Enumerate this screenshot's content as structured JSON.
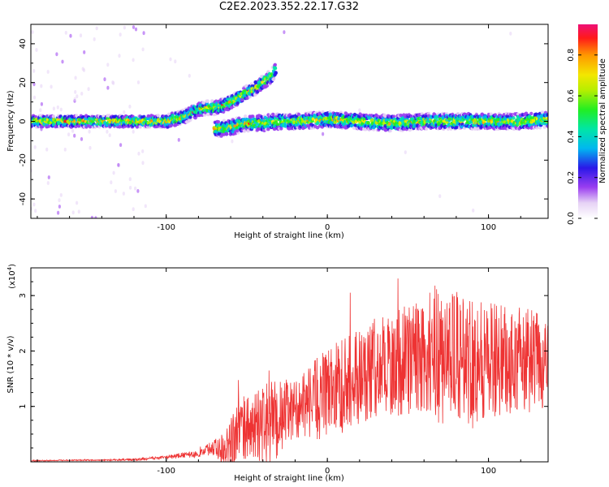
{
  "title": "C2E2.2023.352.22.17.G32",
  "chart_data": [
    {
      "type": "heatmap",
      "xlabel": "Height of straight line (km)",
      "ylabel": "Frequency (Hz)",
      "xlim": [
        -184,
        137
      ],
      "ylim": [
        -50,
        50
      ],
      "xticks": [
        "-100",
        "0",
        "100"
      ],
      "yticks": [
        "40",
        "20",
        "0",
        "-20",
        "-40"
      ],
      "colorbar": {
        "label": "Normalized spectral amplitude",
        "range": [
          0,
          0.95
        ],
        "ticks": [
          "0.0",
          "0.2",
          "0.4",
          "0.6",
          "0.8"
        ]
      },
      "ridge": [
        {
          "x": -184,
          "f": 0
        },
        {
          "x": -160,
          "f": 0
        },
        {
          "x": -140,
          "f": 0
        },
        {
          "x": -120,
          "f": 0
        },
        {
          "x": -100,
          "f": 0
        },
        {
          "x": -95,
          "f": 1
        },
        {
          "x": -90,
          "f": 2
        },
        {
          "x": -85,
          "f": 4
        },
        {
          "x": -80,
          "f": 6
        },
        {
          "x": -75,
          "f": 7
        },
        {
          "x": -70,
          "f": 7
        },
        {
          "x": -65,
          "f": 8
        },
        {
          "x": -60,
          "f": 10
        },
        {
          "x": -55,
          "f": 12
        },
        {
          "x": -50,
          "f": 15
        },
        {
          "x": -45,
          "f": 17
        },
        {
          "x": -40,
          "f": 20
        },
        {
          "x": -35,
          "f": 23
        },
        {
          "x": -32,
          "f": 27
        }
      ],
      "lower_branch": [
        {
          "x": -70,
          "f": -4
        },
        {
          "x": -60,
          "f": -3
        },
        {
          "x": -50,
          "f": -1
        },
        {
          "x": -40,
          "f": -1
        },
        {
          "x": -30,
          "f": 0
        },
        {
          "x": -20,
          "f": 0
        },
        {
          "x": 0,
          "f": 1
        },
        {
          "x": 20,
          "f": 0
        },
        {
          "x": 40,
          "f": -1
        },
        {
          "x": 60,
          "f": 0
        },
        {
          "x": 80,
          "f": 0
        },
        {
          "x": 100,
          "f": 0
        },
        {
          "x": 120,
          "f": 0
        },
        {
          "x": 137,
          "f": 1
        }
      ]
    },
    {
      "type": "line",
      "xlabel": "Height of straight line (km)",
      "ylabel": "SNR (10 * v/v)",
      "y_multiplier": "(x10",
      "y_multiplier_exp": "4",
      "y_multiplier_close": ")",
      "xlim": [
        -184,
        137
      ],
      "ylim": [
        0,
        3.5
      ],
      "xticks": [
        "-100",
        "0",
        "100"
      ],
      "yticks": [
        "1",
        "2",
        "3"
      ],
      "series": [
        {
          "color": "#ee3333",
          "x": [
            -184,
            -160,
            -140,
            -120,
            -100,
            -90,
            -80,
            -75,
            -70,
            -65,
            -60,
            -55,
            -50,
            -45,
            -40,
            -35,
            -30,
            -25,
            -20,
            -15,
            -10,
            -5,
            0,
            5,
            10,
            15,
            20,
            25,
            30,
            35,
            40,
            45,
            50,
            55,
            60,
            65,
            70,
            75,
            80,
            85,
            90,
            95,
            100,
            105,
            110,
            115,
            120,
            125,
            130,
            137
          ],
          "mean": [
            0.02,
            0.03,
            0.03,
            0.04,
            0.08,
            0.12,
            0.14,
            0.22,
            0.25,
            0.3,
            0.4,
            0.55,
            0.6,
            0.65,
            0.65,
            0.7,
            0.8,
            0.9,
            0.95,
            1.0,
            1.1,
            1.15,
            1.25,
            1.35,
            1.4,
            1.5,
            1.55,
            1.6,
            1.7,
            1.75,
            1.8,
            1.8,
            1.85,
            1.9,
            1.9,
            1.95,
            1.95,
            1.9,
            1.9,
            1.85,
            1.9,
            1.85,
            1.8,
            1.85,
            1.8,
            1.8,
            1.85,
            1.8,
            1.85,
            1.85
          ],
          "spread": [
            0.01,
            0.01,
            0.01,
            0.02,
            0.03,
            0.05,
            0.06,
            0.1,
            0.15,
            0.4,
            0.5,
            0.6,
            0.6,
            0.6,
            0.7,
            0.8,
            0.7,
            0.6,
            0.5,
            0.6,
            0.7,
            0.8,
            0.8,
            0.8,
            0.9,
            0.9,
            0.9,
            0.9,
            0.9,
            0.9,
            1.0,
            1.0,
            1.0,
            1.0,
            1.1,
            1.2,
            1.3,
            1.2,
            1.2,
            1.1,
            1.3,
            1.2,
            1.1,
            1.0,
            1.0,
            1.0,
            1.0,
            1.0,
            0.9,
            0.9
          ]
        }
      ]
    }
  ]
}
